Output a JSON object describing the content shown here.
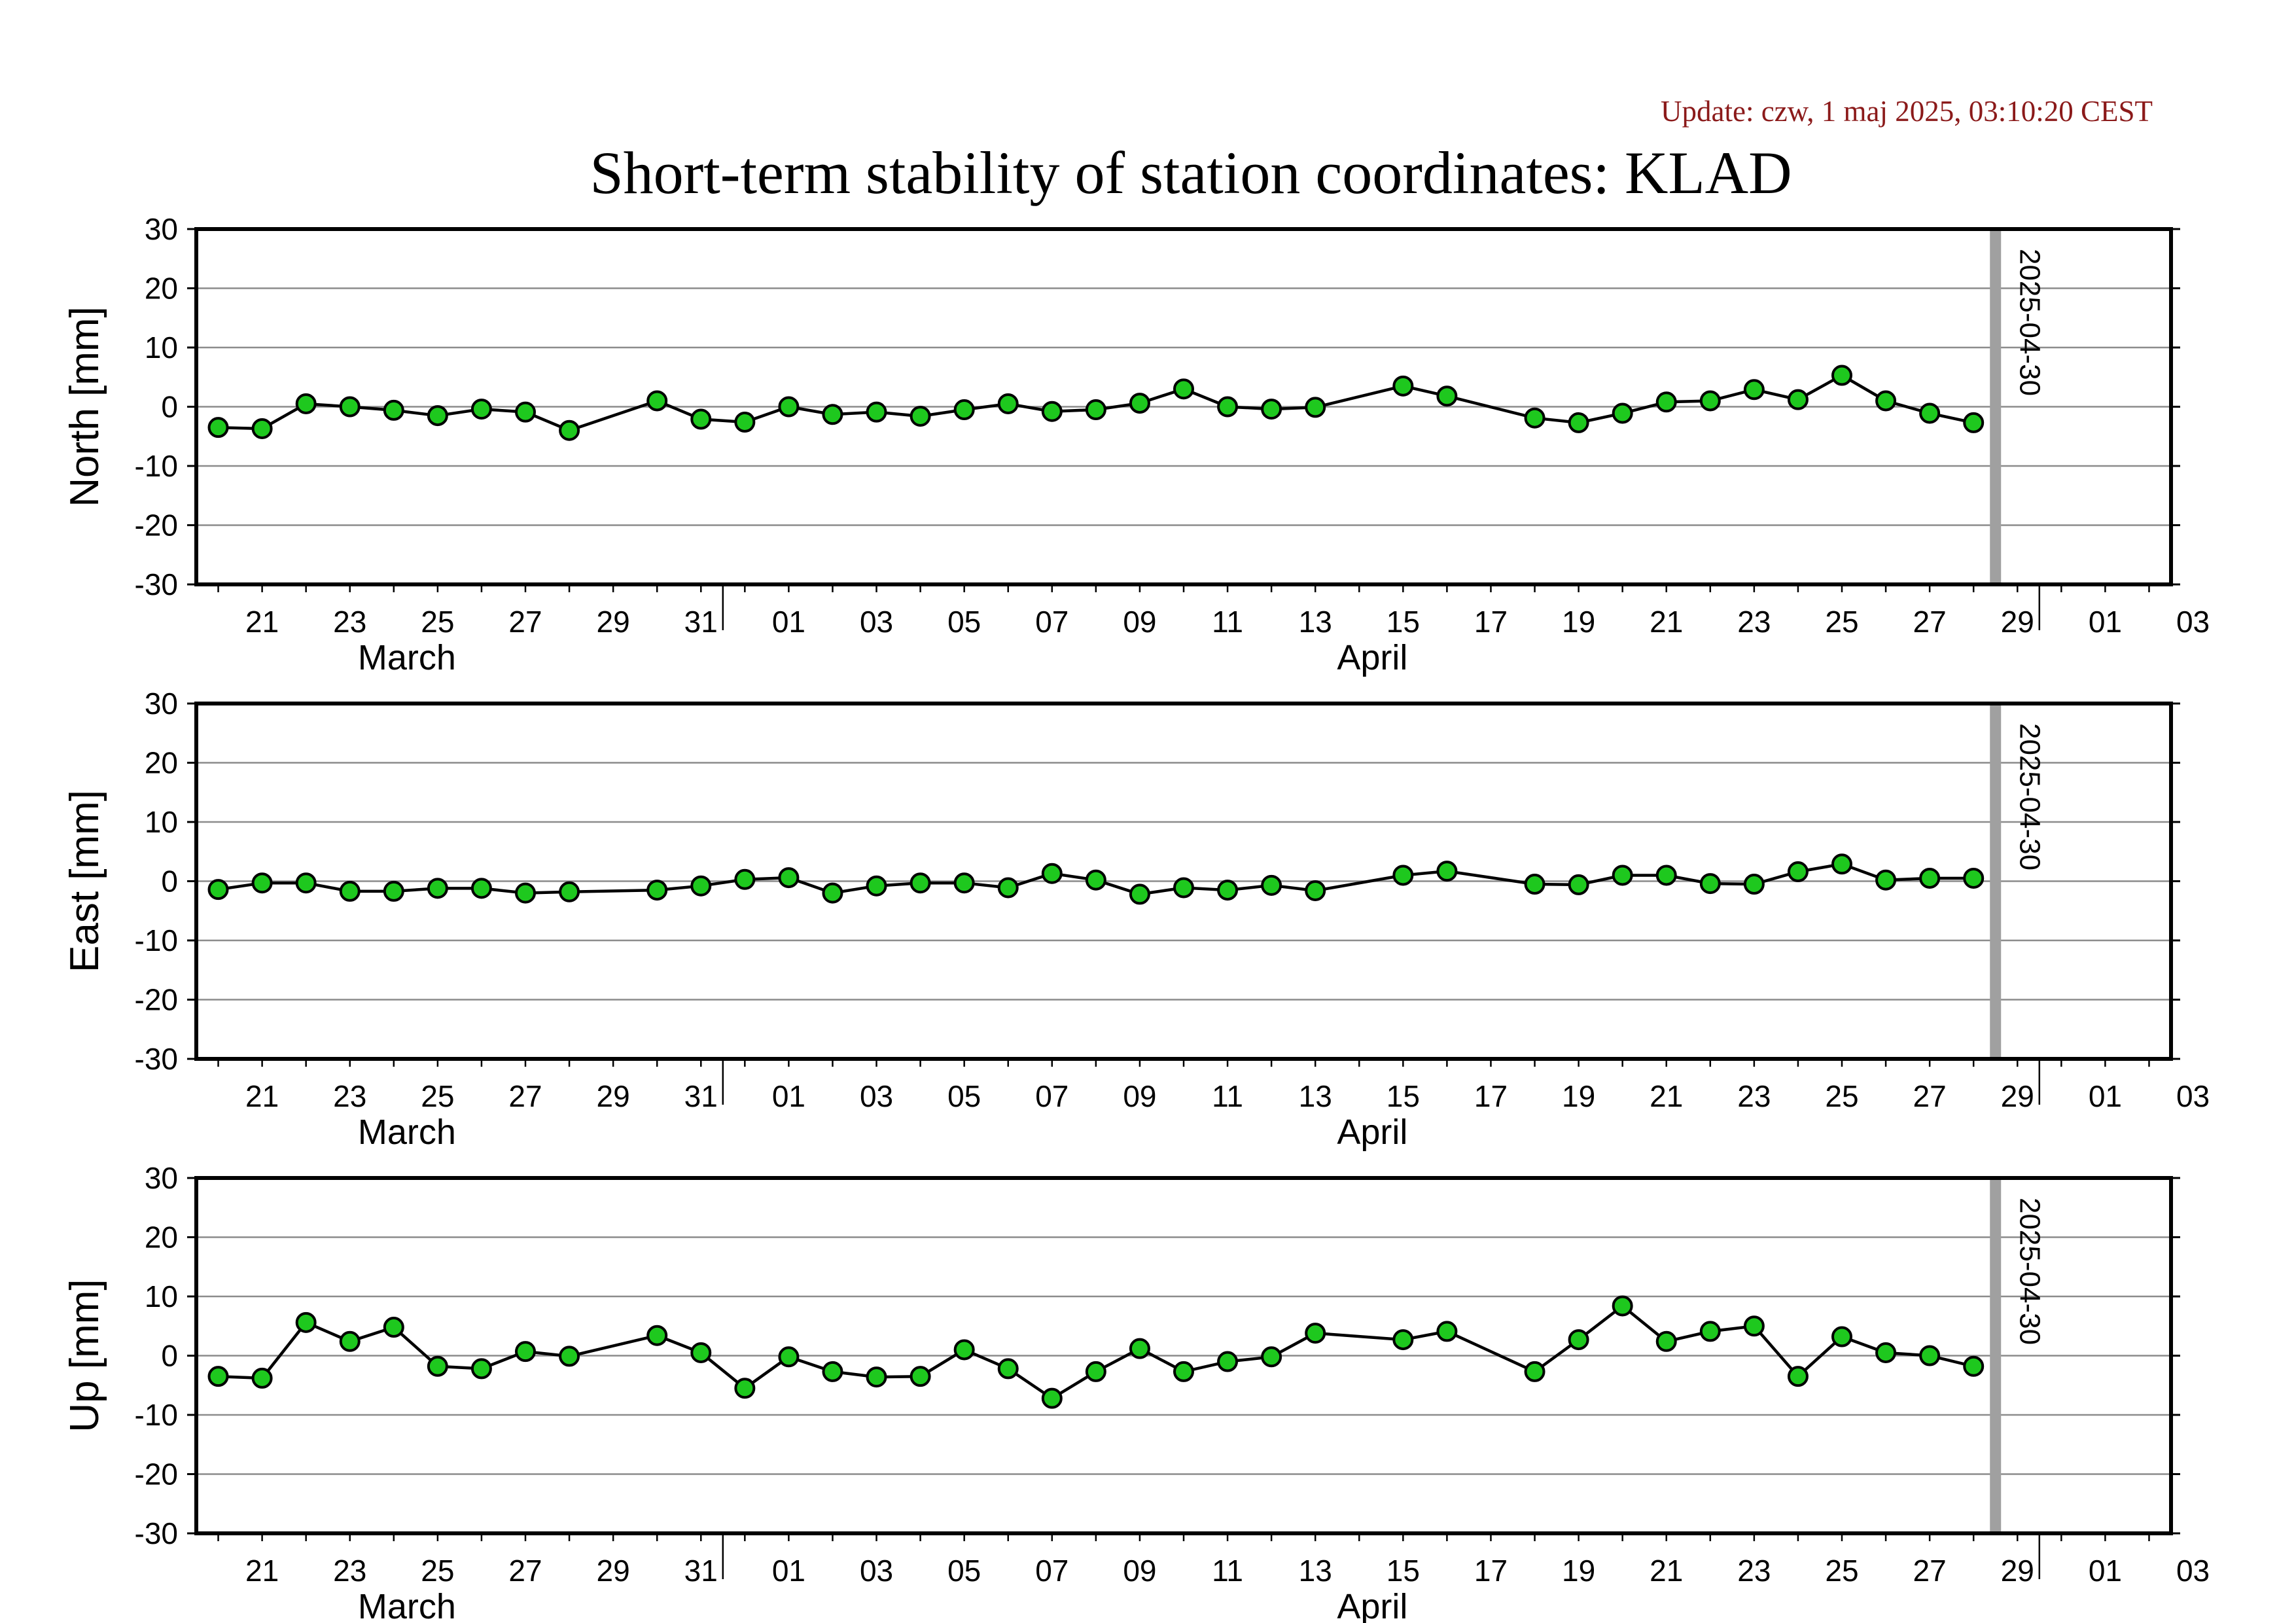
{
  "header": {
    "update": "Update: czw, 1 maj 2025, 03:10:20 CEST",
    "title": "Short-term stability of station coordinates: KLAD"
  },
  "chart_data": {
    "type": "line",
    "marker_date": "2025-04-30",
    "x_unit": "day",
    "xlim": [
      "2025-03-20",
      "2025-05-03"
    ],
    "x_tick_labels": [
      "21",
      "23",
      "25",
      "27",
      "29",
      "31",
      "01",
      "03",
      "05",
      "07",
      "09",
      "11",
      "13",
      "15",
      "17",
      "19",
      "21",
      "23",
      "25",
      "27",
      "29",
      "01",
      "03"
    ],
    "month_labels": [
      "March",
      "April"
    ],
    "marker_color": "#a0a0a0",
    "line_color": "#000000",
    "point_color": "#1ec81e",
    "panels": [
      {
        "ylabel": "North [mm]",
        "ylim": [
          -30,
          30
        ],
        "yticks": [
          30,
          20,
          10,
          0,
          -10,
          -20,
          -30
        ],
        "grid": true,
        "x": [
          "2025-03-20",
          "2025-03-21",
          "2025-03-22",
          "2025-03-23",
          "2025-03-24",
          "2025-03-25",
          "2025-03-26",
          "2025-03-27",
          "2025-03-28",
          "2025-03-30",
          "2025-03-31",
          "2025-04-01",
          "2025-04-02",
          "2025-04-03",
          "2025-04-04",
          "2025-04-05",
          "2025-04-06",
          "2025-04-07",
          "2025-04-08",
          "2025-04-09",
          "2025-04-10",
          "2025-04-11",
          "2025-04-12",
          "2025-04-13",
          "2025-04-14",
          "2025-04-16",
          "2025-04-17",
          "2025-04-19",
          "2025-04-20",
          "2025-04-21",
          "2025-04-22",
          "2025-04-23",
          "2025-04-24",
          "2025-04-25",
          "2025-04-26",
          "2025-04-27",
          "2025-04-28",
          "2025-04-29"
        ],
        "values": [
          -3.5,
          -3.7,
          0.5,
          0,
          -0.6,
          -1.5,
          -0.4,
          -0.9,
          -4,
          1,
          -2.1,
          -2.6,
          0,
          -1.3,
          -0.9,
          -1.6,
          -0.5,
          0.5,
          -0.8,
          -0.5,
          0.6,
          3,
          0,
          -0.4,
          -0.1,
          3.5,
          1.8,
          -1.9,
          -2.7,
          -1.1,
          0.8,
          1,
          2.9,
          1.2,
          5.3,
          1,
          -1.1,
          -2.7
        ]
      },
      {
        "ylabel": "East [mm]",
        "ylim": [
          -30,
          30
        ],
        "yticks": [
          30,
          20,
          10,
          0,
          -10,
          -20,
          -30
        ],
        "grid": true,
        "x": [
          "2025-03-20",
          "2025-03-21",
          "2025-03-22",
          "2025-03-23",
          "2025-03-24",
          "2025-03-25",
          "2025-03-26",
          "2025-03-27",
          "2025-03-28",
          "2025-03-30",
          "2025-03-31",
          "2025-04-01",
          "2025-04-02",
          "2025-04-03",
          "2025-04-04",
          "2025-04-05",
          "2025-04-06",
          "2025-04-07",
          "2025-04-08",
          "2025-04-09",
          "2025-04-10",
          "2025-04-11",
          "2025-04-12",
          "2025-04-13",
          "2025-04-14",
          "2025-04-16",
          "2025-04-17",
          "2025-04-19",
          "2025-04-20",
          "2025-04-21",
          "2025-04-22",
          "2025-04-23",
          "2025-04-24",
          "2025-04-25",
          "2025-04-26",
          "2025-04-27",
          "2025-04-28",
          "2025-04-29"
        ],
        "values": [
          -1.4,
          -0.3,
          -0.3,
          -1.7,
          -1.7,
          -1.2,
          -1.2,
          -2,
          -1.8,
          -1.5,
          -0.8,
          0.3,
          0.6,
          -2,
          -0.8,
          -0.3,
          -0.3,
          -1.1,
          1.3,
          0.2,
          -2.2,
          -1.1,
          -1.5,
          -0.7,
          -1.6,
          1,
          1.7,
          -0.5,
          -0.6,
          1,
          1,
          -0.4,
          -0.5,
          1.6,
          2.9,
          0.2,
          0.5,
          0.5
        ]
      },
      {
        "ylabel": "Up [mm]",
        "ylim": [
          -30,
          30
        ],
        "yticks": [
          30,
          20,
          10,
          0,
          -10,
          -20,
          -30
        ],
        "grid": true,
        "x": [
          "2025-03-20",
          "2025-03-21",
          "2025-03-22",
          "2025-03-23",
          "2025-03-24",
          "2025-03-25",
          "2025-03-26",
          "2025-03-27",
          "2025-03-28",
          "2025-03-30",
          "2025-03-31",
          "2025-04-01",
          "2025-04-02",
          "2025-04-03",
          "2025-04-04",
          "2025-04-05",
          "2025-04-06",
          "2025-04-07",
          "2025-04-08",
          "2025-04-09",
          "2025-04-10",
          "2025-04-11",
          "2025-04-12",
          "2025-04-13",
          "2025-04-14",
          "2025-04-16",
          "2025-04-17",
          "2025-04-19",
          "2025-04-20",
          "2025-04-21",
          "2025-04-22",
          "2025-04-23",
          "2025-04-24",
          "2025-04-25",
          "2025-04-26",
          "2025-04-27",
          "2025-04-28",
          "2025-04-29"
        ],
        "values": [
          -3.5,
          -3.8,
          5.6,
          2.4,
          4.8,
          -1.8,
          -2.2,
          0.7,
          -0.1,
          3.4,
          0.5,
          -5.5,
          -0.2,
          -2.7,
          -3.6,
          -3.5,
          1,
          -2.2,
          -7.2,
          -2.7,
          1.2,
          -2.7,
          -1,
          -0.2,
          3.8,
          2.7,
          4.1,
          -2.7,
          2.7,
          8.4,
          2.4,
          4.1,
          5,
          -3.5,
          3.2,
          0.5,
          0,
          -1.8
        ]
      }
    ]
  }
}
